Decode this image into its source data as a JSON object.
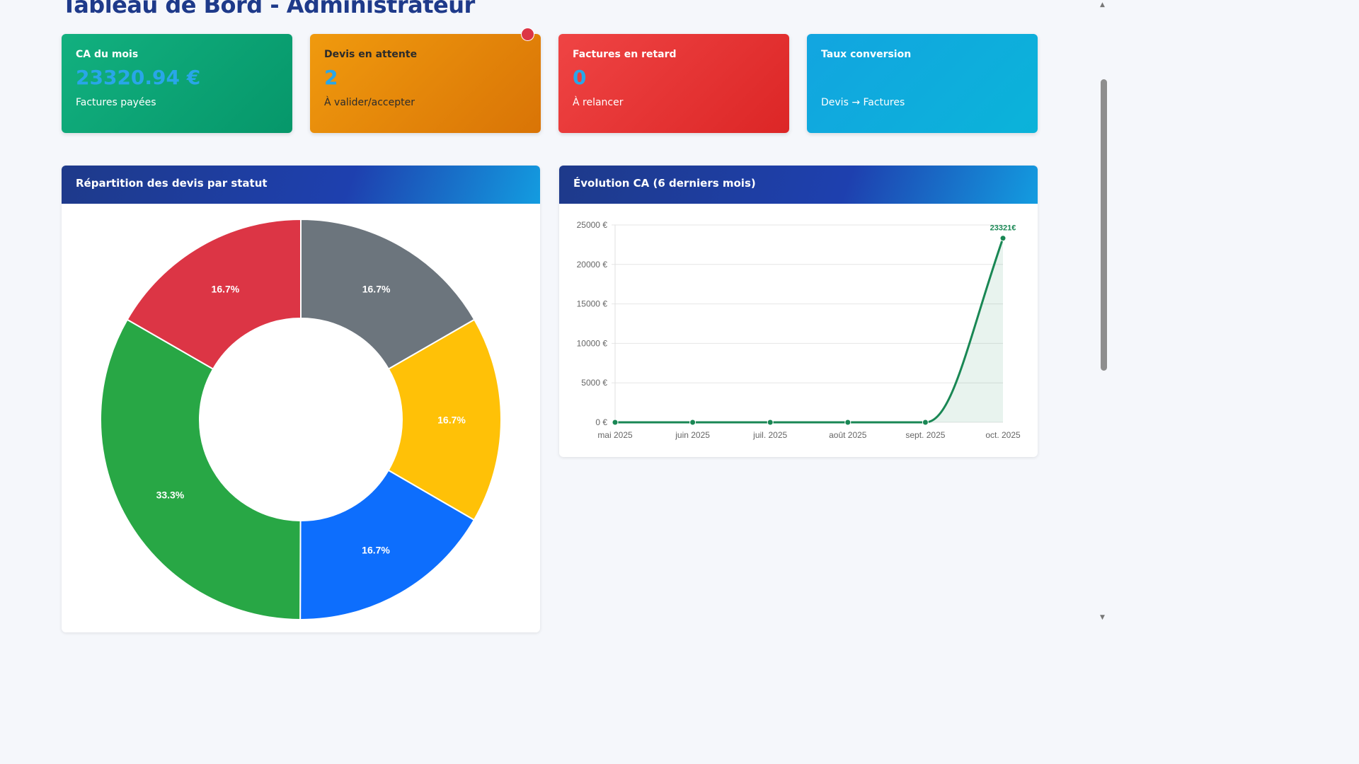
{
  "page": {
    "title": "Tableau de Bord - Administrateur"
  },
  "kpis": [
    {
      "title": "CA du mois",
      "value": "23320.94 €",
      "subtitle": "Factures payées",
      "color": "#0ea572"
    },
    {
      "title": "Devis en attente",
      "value": "2",
      "subtitle": "À valider/accepter",
      "color": "#e98a0a"
    },
    {
      "title": "Factures en retard",
      "value": "0",
      "subtitle": "À relancer",
      "color": "#e43535"
    },
    {
      "title": "Taux conversion",
      "value": "",
      "subtitle": "Devis → Factures",
      "color": "#0eabdc"
    }
  ],
  "panels": {
    "donut_title": "Répartition des devis par statut",
    "line_title": "Évolution CA (6 derniers mois)"
  },
  "chart_data": [
    {
      "type": "pie",
      "values": [
        16.7,
        16.7,
        16.7,
        33.3,
        16.7
      ],
      "labels": [
        "16.7%",
        "16.7%",
        "16.7%",
        "33.3%",
        "16.7%"
      ],
      "colors": [
        "#6c757d",
        "#ffc107",
        "#0d6efd",
        "#28a745",
        "#dc3545"
      ],
      "title": ""
    },
    {
      "type": "area",
      "categories": [
        "mai 2025",
        "juin 2025",
        "juil. 2025",
        "août 2025",
        "sept. 2025",
        "oct. 2025"
      ],
      "values": [
        0,
        0,
        0,
        0,
        0,
        23321
      ],
      "last_point_label": "23321€",
      "yticks": [
        "25000 €",
        "20000 €",
        "15000 €",
        "10000 €",
        "5000 €",
        "0 €"
      ],
      "ylim": [
        0,
        25000
      ],
      "grid": true,
      "color": "#198754",
      "title": "",
      "xlabel": "",
      "ylabel": ""
    }
  ]
}
